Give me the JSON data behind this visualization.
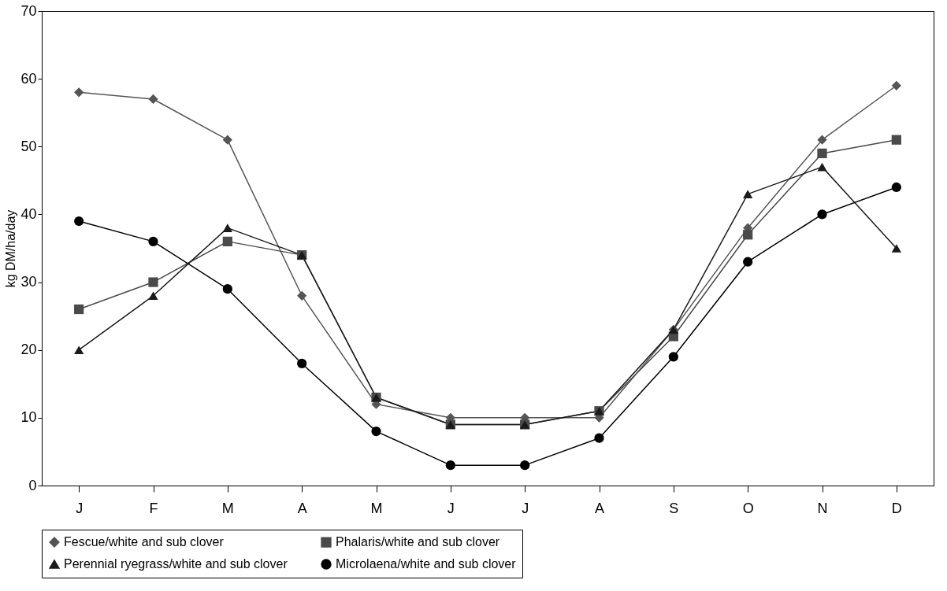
{
  "chart_data": {
    "type": "line",
    "ylabel": "kg DM/ha/day",
    "categories": [
      "J",
      "F",
      "M",
      "A",
      "M",
      "J",
      "J",
      "A",
      "S",
      "O",
      "N",
      "D"
    ],
    "ylim": [
      0,
      70
    ],
    "yticks": [
      0,
      10,
      20,
      30,
      40,
      50,
      60,
      70
    ],
    "grid": false,
    "legend": "bottom",
    "series": [
      {
        "name": "Fescue/white and sub clover",
        "color": "#555555",
        "marker": "diamond",
        "values": [
          58,
          57,
          51,
          28,
          12,
          10,
          10,
          10,
          23,
          38,
          51,
          59
        ]
      },
      {
        "name": "Phalaris/white and sub clover",
        "color": "#4a4a4a",
        "marker": "square",
        "values": [
          26,
          30,
          36,
          34,
          13,
          9,
          9,
          11,
          22,
          37,
          49,
          51
        ]
      },
      {
        "name": "Perennial ryegrass/white and sub clover",
        "color": "#1a1a1a",
        "marker": "triangle",
        "values": [
          20,
          28,
          38,
          34,
          13,
          9,
          9,
          11,
          23,
          43,
          47,
          35
        ]
      },
      {
        "name": "Microlaena/white and sub clover",
        "color": "#000000",
        "marker": "circle",
        "values": [
          39,
          36,
          29,
          18,
          8,
          3,
          3,
          7,
          19,
          33,
          40,
          44
        ]
      }
    ]
  }
}
